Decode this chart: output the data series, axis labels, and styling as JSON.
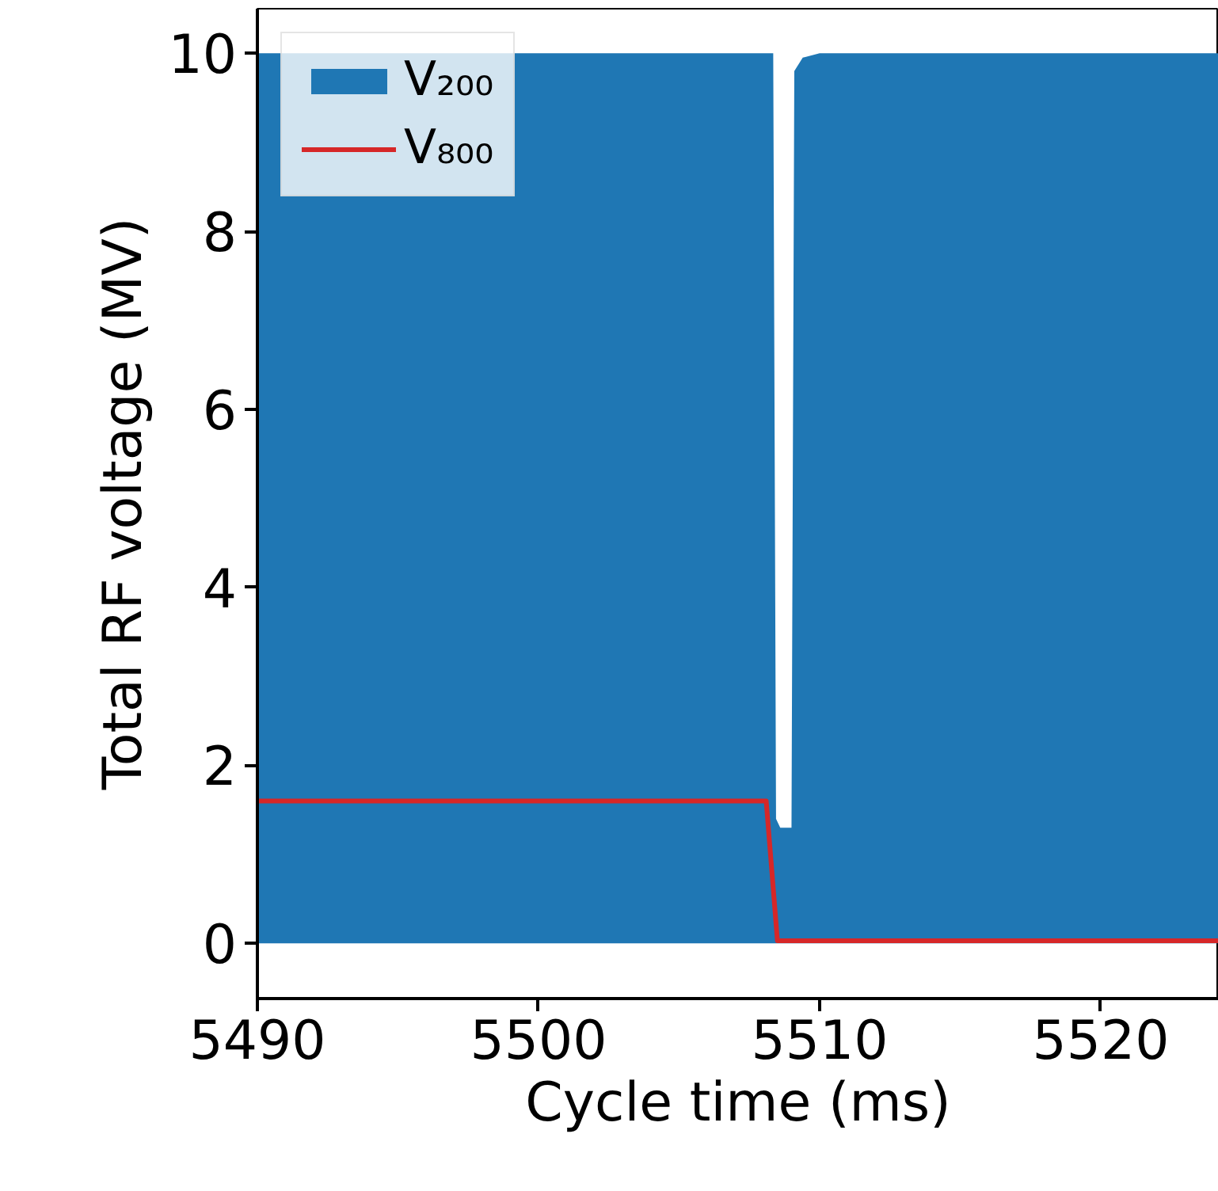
{
  "chart_data": {
    "type": "area",
    "xlabel": "Cycle time (ms)",
    "ylabel": "Total RF voltage (MV)",
    "xlim": [
      5490,
      5524.2
    ],
    "ylim": [
      -0.62,
      10.5
    ],
    "xticks": [
      5490,
      5500,
      5510,
      5520
    ],
    "yticks": [
      0,
      2,
      4,
      6,
      8,
      10
    ],
    "grid": false,
    "legend": "top left",
    "series": [
      {
        "name": "V₂₀₀",
        "color": "#1f77b4",
        "x": [
          5490,
          5508.35,
          5508.45,
          5508.6,
          5509.0,
          5509.1,
          5509.4,
          5510,
          5524.2
        ],
        "values": [
          10,
          10,
          1.4,
          1.3,
          1.3,
          9.8,
          9.95,
          10,
          10
        ]
      },
      {
        "name": "V₈₀₀",
        "type": "line",
        "color": "#d62728",
        "x": [
          5490,
          5508.1,
          5508.5,
          5524.2
        ],
        "values": [
          1.6,
          1.6,
          0.03,
          0.03
        ]
      }
    ]
  }
}
